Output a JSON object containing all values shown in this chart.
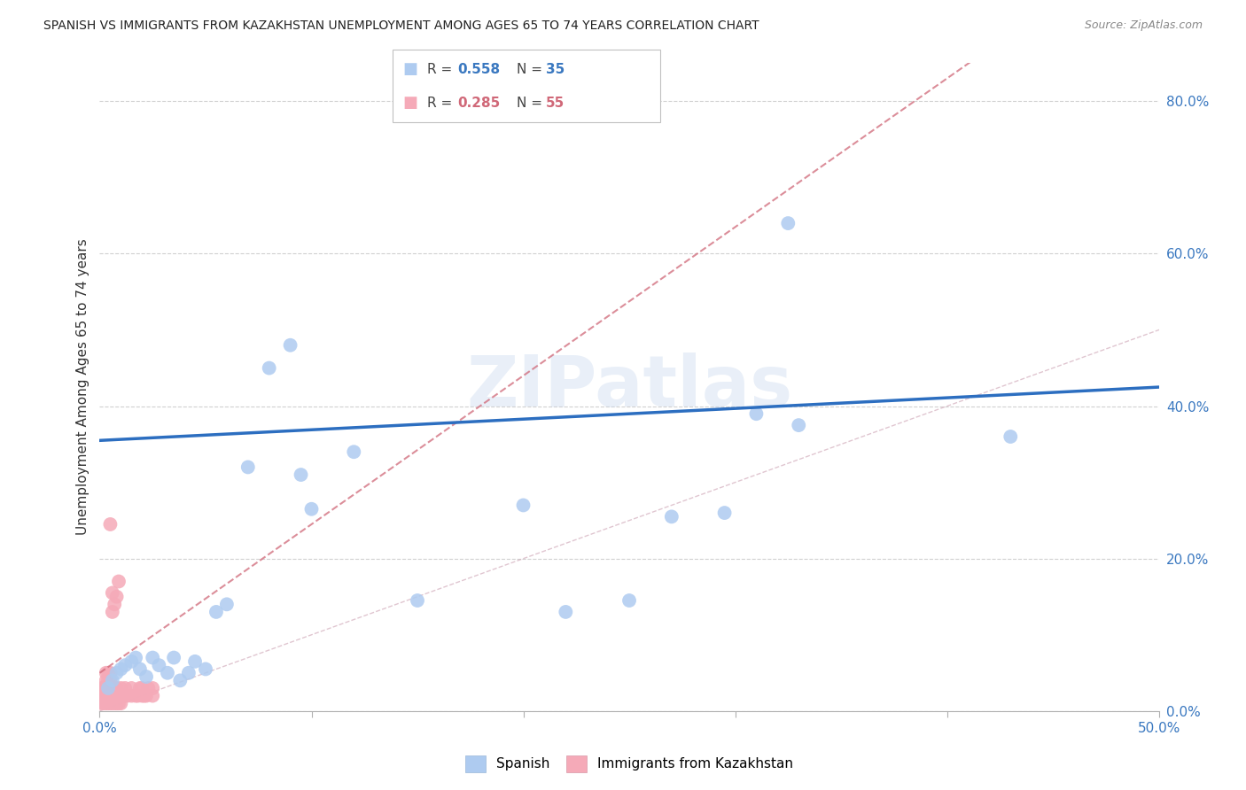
{
  "title": "SPANISH VS IMMIGRANTS FROM KAZAKHSTAN UNEMPLOYMENT AMONG AGES 65 TO 74 YEARS CORRELATION CHART",
  "source": "Source: ZipAtlas.com",
  "ylabel": "Unemployment Among Ages 65 to 74 years",
  "xlim": [
    0,
    0.5
  ],
  "ylim": [
    0,
    0.85
  ],
  "xticks": [
    0.0,
    0.1,
    0.2,
    0.3,
    0.4,
    0.5
  ],
  "yticks": [
    0.0,
    0.2,
    0.4,
    0.6,
    0.8
  ],
  "xtick_labels_show": [
    "0.0%",
    "",
    "",
    "",
    "",
    "50.0%"
  ],
  "ytick_labels": [
    "0.0%",
    "20.0%",
    "40.0%",
    "60.0%",
    "80.0%"
  ],
  "spanish_R": 0.558,
  "spanish_N": 35,
  "kazakh_R": 0.285,
  "kazakh_N": 55,
  "spanish_color": "#aecbf0",
  "kazakh_color": "#f5aab8",
  "spanish_line_color": "#2c6ec0",
  "kazakh_line_color": "#d06878",
  "watermark": "ZIPatlas",
  "spanish_line_x0": 0.0,
  "spanish_line_y0": 0.355,
  "spanish_line_x1": 0.5,
  "spanish_line_y1": 0.425,
  "kazakh_line_x0": 0.0,
  "kazakh_line_y0": 0.05,
  "kazakh_line_x1": 0.1,
  "kazakh_line_y1": 0.245,
  "diag_color": "#d0a8b8",
  "spanish_x": [
    0.004,
    0.006,
    0.008,
    0.01,
    0.012,
    0.015,
    0.017,
    0.019,
    0.022,
    0.025,
    0.028,
    0.032,
    0.035,
    0.038,
    0.042,
    0.045,
    0.05,
    0.055,
    0.06,
    0.07,
    0.08,
    0.09,
    0.095,
    0.1,
    0.12,
    0.15,
    0.2,
    0.22,
    0.25,
    0.27,
    0.295,
    0.31,
    0.325,
    0.33,
    0.43
  ],
  "spanish_y": [
    0.03,
    0.04,
    0.05,
    0.055,
    0.06,
    0.065,
    0.07,
    0.055,
    0.045,
    0.07,
    0.06,
    0.05,
    0.07,
    0.04,
    0.05,
    0.065,
    0.055,
    0.13,
    0.14,
    0.32,
    0.45,
    0.48,
    0.31,
    0.265,
    0.34,
    0.145,
    0.27,
    0.13,
    0.145,
    0.255,
    0.26,
    0.39,
    0.64,
    0.375,
    0.36
  ],
  "kazakh_x": [
    0.001,
    0.001,
    0.001,
    0.002,
    0.002,
    0.002,
    0.003,
    0.003,
    0.003,
    0.003,
    0.003,
    0.004,
    0.004,
    0.004,
    0.004,
    0.004,
    0.005,
    0.005,
    0.005,
    0.005,
    0.005,
    0.005,
    0.006,
    0.006,
    0.006,
    0.006,
    0.007,
    0.007,
    0.007,
    0.007,
    0.008,
    0.008,
    0.008,
    0.008,
    0.009,
    0.009,
    0.009,
    0.01,
    0.01,
    0.01,
    0.011,
    0.012,
    0.013,
    0.015,
    0.015,
    0.017,
    0.018,
    0.019,
    0.02,
    0.02,
    0.021,
    0.022,
    0.023,
    0.025,
    0.025
  ],
  "kazakh_y": [
    0.01,
    0.02,
    0.03,
    0.01,
    0.02,
    0.03,
    0.01,
    0.02,
    0.03,
    0.04,
    0.05,
    0.01,
    0.02,
    0.03,
    0.04,
    0.05,
    0.01,
    0.02,
    0.03,
    0.04,
    0.05,
    0.245,
    0.01,
    0.02,
    0.13,
    0.155,
    0.01,
    0.02,
    0.03,
    0.14,
    0.01,
    0.02,
    0.03,
    0.15,
    0.01,
    0.02,
    0.17,
    0.01,
    0.02,
    0.03,
    0.02,
    0.03,
    0.02,
    0.02,
    0.03,
    0.02,
    0.02,
    0.03,
    0.02,
    0.03,
    0.02,
    0.02,
    0.03,
    0.02,
    0.03
  ]
}
